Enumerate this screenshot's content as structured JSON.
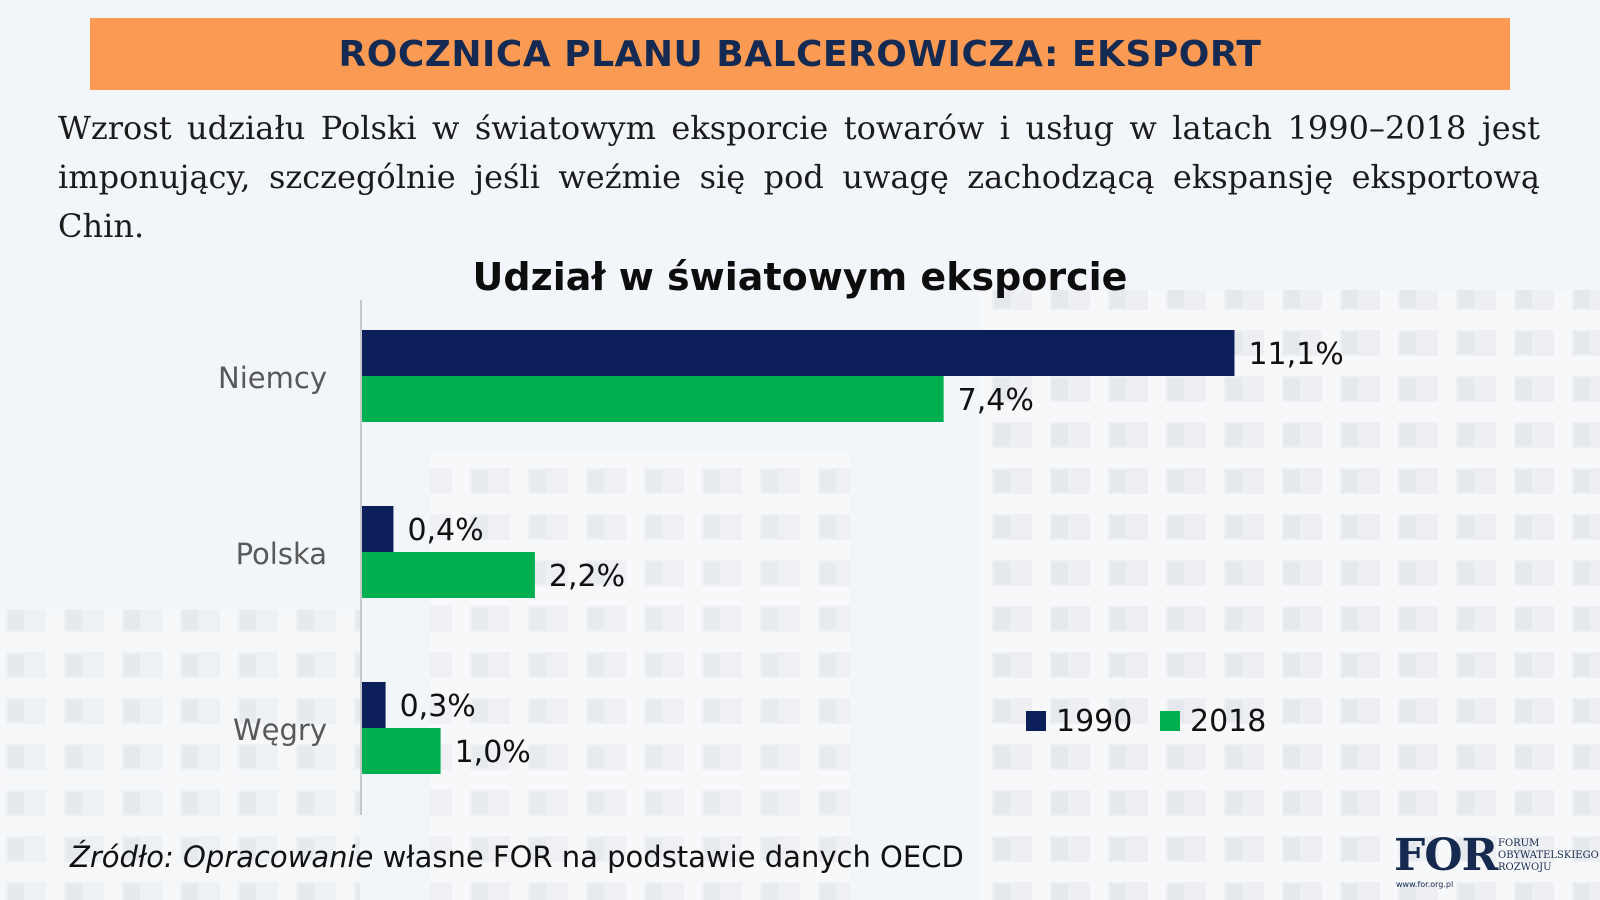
{
  "header": {
    "title": "ROCZNICA PLANU BALCEROWICZA: EKSPORT"
  },
  "intro": {
    "text": "Wzrost udziału Polski w światowym eksporcie towarów i usług w latach 1990–2018 jest imponujący, szczególnie jeśli weźmie się pod uwagę zachodzącą ekspansję eksportową Chin."
  },
  "colors": {
    "banner": "#fb9a52",
    "series_1990": "#0c1f5b",
    "series_2018": "#00b050"
  },
  "chart_data": {
    "type": "bar",
    "orientation": "horizontal",
    "title": "Udział w światowym eksporcie",
    "categories": [
      "Niemcy",
      "Polska",
      "Węgry"
    ],
    "series": [
      {
        "name": "1990",
        "values": [
          11.1,
          0.4,
          0.3
        ],
        "labels": [
          "11,1%",
          "0,4%",
          "0,3%"
        ]
      },
      {
        "name": "2018",
        "values": [
          7.4,
          2.2,
          1.0
        ],
        "labels": [
          "7,4%",
          "2,2%",
          "1,0%"
        ]
      }
    ],
    "xlim": [
      0,
      12
    ],
    "unit": "%",
    "grid": false,
    "legend_position": "bottom-right"
  },
  "source": {
    "italic": "Źródło: Opracowanie",
    "plain": " własne FOR na podstawie danych OECD"
  },
  "logo": {
    "mark": "FOR",
    "line1": "FORUM",
    "line2": "OBYWATELSKIEGO",
    "line3": "ROZWOJU",
    "url": "www.for.org.pl"
  }
}
